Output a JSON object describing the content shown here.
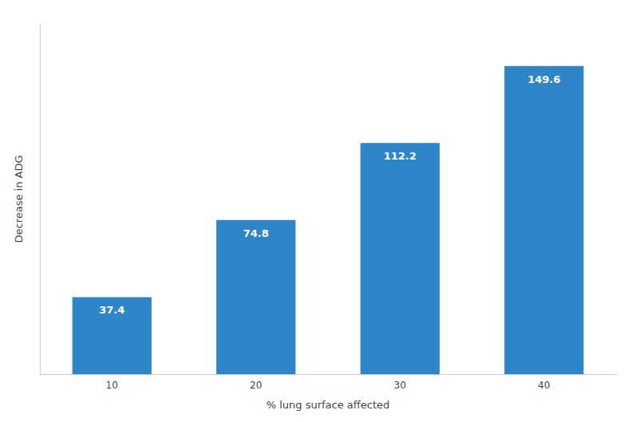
{
  "chart_data": {
    "type": "bar",
    "categories": [
      "10",
      "20",
      "30",
      "40"
    ],
    "values": [
      37.4,
      74.8,
      112.2,
      149.6
    ],
    "color": "#2E86C8",
    "xlabel": "% lung surface affected",
    "ylabel": "Decrease in ADG",
    "ylim": [
      0,
      170
    ],
    "yticks": [],
    "grid": false,
    "data_labels": true,
    "tick_labels": "x"
  }
}
